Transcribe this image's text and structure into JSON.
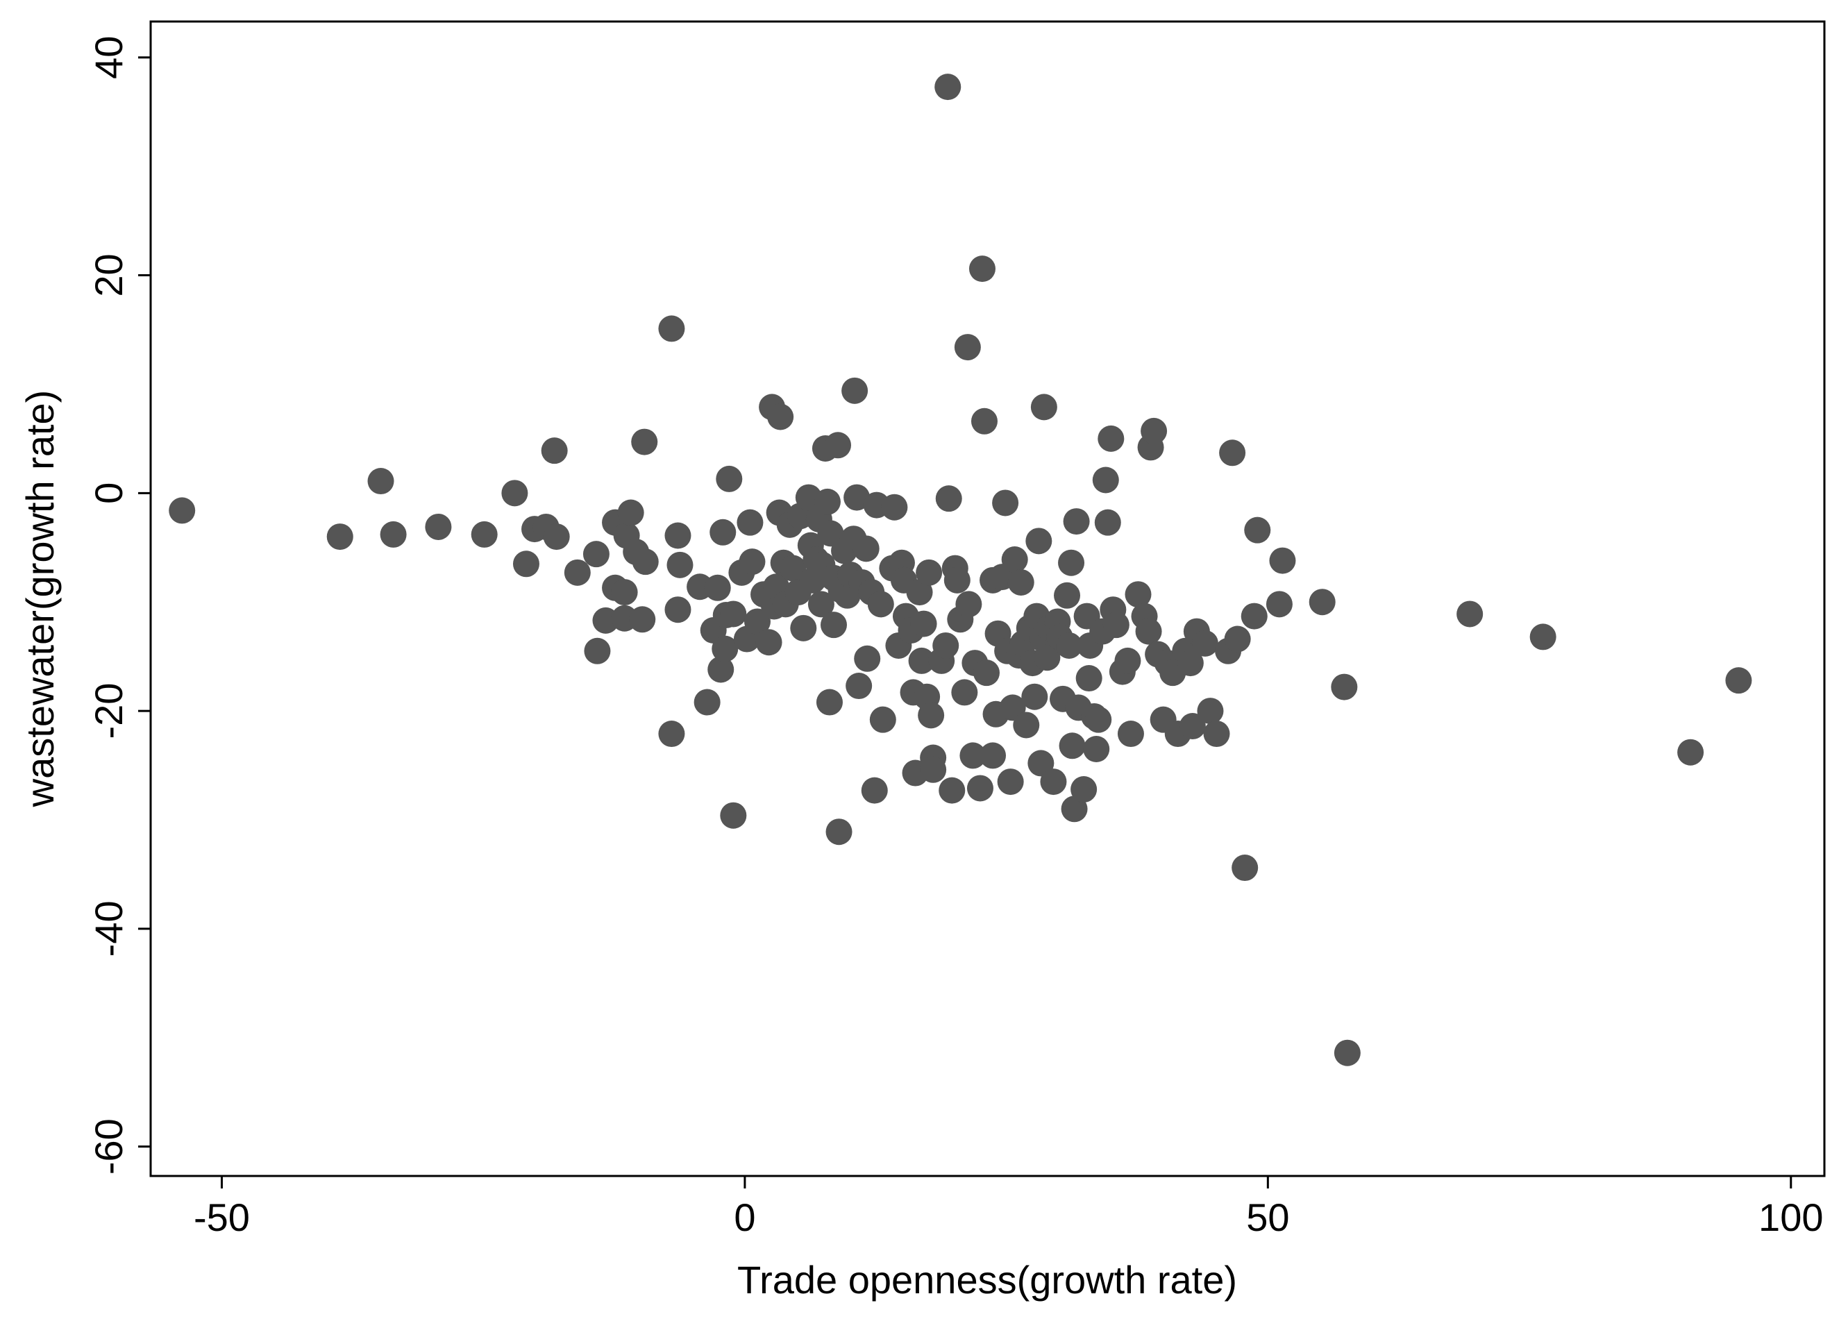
{
  "chart_data": {
    "type": "scatter",
    "x_label": "Trade openness(growth rate)",
    "y_label": "wastewater(growth rate)",
    "color": "#555555",
    "xlim": [
      -56.8,
      103.2
    ],
    "xticks": [
      -50,
      0,
      50,
      100
    ],
    "ylim": [
      -62.7,
      43.3
    ],
    "yticks": [
      -60,
      -40,
      -20,
      0,
      20,
      40
    ],
    "x": [
      -53.8,
      -38.7,
      -34.8,
      -33.6,
      -29.3,
      -24.9,
      -22.0,
      -20.9,
      -20.1,
      -19.0,
      -18.2,
      -18.0,
      -16.0,
      -14.2,
      -14.1,
      -13.3,
      -12.4,
      -12.4,
      -11.5,
      -11.5,
      -11.3,
      -10.9,
      -10.4,
      -9.8,
      -9.6,
      -9.5,
      -7.0,
      -7.0,
      -6.4,
      -6.4,
      -6.2,
      -4.3,
      -3.6,
      -3.0,
      -2.6,
      -2.3,
      -2.1,
      -1.9,
      -1.8,
      -1.5,
      -1.1,
      -1.1,
      -0.3,
      0.2,
      0.5,
      0.7,
      1.2,
      1.8,
      2.3,
      2.6,
      2.8,
      3.0,
      3.4,
      3.3,
      3.7,
      3.9,
      4.3,
      4.6,
      5.1,
      5.3,
      5.6,
      6.1,
      6.3,
      6.5,
      6.8,
      7.1,
      7.3,
      7.4,
      7.7,
      7.9,
      8.1,
      8.2,
      8.5,
      8.5,
      8.9,
      9.0,
      9.2,
      9.5,
      9.8,
      10.1,
      10.4,
      10.5,
      10.7,
      10.9,
      11.2,
      11.6,
      11.7,
      12.1,
      12.4,
      12.6,
      13.0,
      13.2,
      14.1,
      14.3,
      14.7,
      15.0,
      15.2,
      15.4,
      15.9,
      16.1,
      16.3,
      16.7,
      16.9,
      17.1,
      17.4,
      17.6,
      17.8,
      18.0,
      18.0,
      18.8,
      19.2,
      19.4,
      19.5,
      19.8,
      20.1,
      20.3,
      20.6,
      21.0,
      21.3,
      21.4,
      21.8,
      22.0,
      22.5,
      22.7,
      22.9,
      23.1,
      23.7,
      23.7,
      24.0,
      24.2,
      24.6,
      24.9,
      25.1,
      25.4,
      25.6,
      25.8,
      26.2,
      26.4,
      26.6,
      26.9,
      27.2,
      27.5,
      27.7,
      27.9,
      28.1,
      28.3,
      28.5,
      28.6,
      28.9,
      29.1,
      29.5,
      29.9,
      30.1,
      30.4,
      30.8,
      31.0,
      31.2,
      31.3,
      31.5,
      31.7,
      31.9,
      32.4,
      32.7,
      32.9,
      33.0,
      33.4,
      33.6,
      33.8,
      34.2,
      34.5,
      34.7,
      35.0,
      35.2,
      35.5,
      36.1,
      36.6,
      36.9,
      37.6,
      38.2,
      38.6,
      38.8,
      39.1,
      39.5,
      40.0,
      40.4,
      40.9,
      41.4,
      42.1,
      42.6,
      42.8,
      43.2,
      44.0,
      44.5,
      45.1,
      46.2,
      46.6,
      47.1,
      47.8,
      48.7,
      49.0,
      51.1,
      51.4,
      55.2,
      57.3,
      57.6,
      69.3,
      76.3,
      90.4,
      95.0
    ],
    "values": [
      -1.6,
      -4.0,
      1.1,
      -3.8,
      -3.1,
      -3.8,
      0,
      -6.5,
      -3.3,
      -3.1,
      3.9,
      -4.0,
      -7.3,
      -5.6,
      -14.5,
      -11.7,
      -2.7,
      -8.7,
      -9.1,
      -11.5,
      -3.9,
      -1.8,
      -5.4,
      -11.6,
      4.7,
      -6.3,
      15.1,
      -22.1,
      -3.9,
      -10.7,
      -6.6,
      -8.6,
      -19.2,
      -12.6,
      -8.7,
      -16.2,
      -3.6,
      -14.3,
      -11.2,
      1.3,
      -29.6,
      -11.1,
      -7.3,
      -13.4,
      -2.7,
      -6.3,
      -11.8,
      -9.3,
      -13.7,
      7.9,
      -10.4,
      -8.6,
      7.0,
      -1.8,
      -6.4,
      -10.2,
      -2.9,
      -6.9,
      -9.1,
      -2.1,
      -12.4,
      -0.4,
      -4.8,
      -8.0,
      -6.1,
      -2.4,
      -10.2,
      -6.6,
      4.1,
      -0.8,
      -19.2,
      -3.7,
      -7.8,
      -12.1,
      4.4,
      -31.1,
      -8.9,
      -5.3,
      -9.4,
      -7.5,
      -4.2,
      9.4,
      -0.4,
      -17.7,
      -8.2,
      -5.1,
      -15.2,
      -9.1,
      -27.3,
      -1.1,
      -10.2,
      -20.8,
      -6.9,
      -1.3,
      -14.0,
      -6.4,
      -8.0,
      -11.3,
      -12.6,
      -18.3,
      -25.7,
      -9.1,
      -15.4,
      -12.0,
      -18.7,
      -7.3,
      -20.4,
      -24.3,
      -25.4,
      -15.4,
      -14.0,
      37.3,
      -0.5,
      -27.3,
      -6.9,
      -8.0,
      -11.6,
      -18.3,
      13.4,
      -10.2,
      -24.1,
      -15.6,
      -27.1,
      20.6,
      6.6,
      -16.5,
      -8.0,
      -24.1,
      -20.3,
      -12.9,
      -7.7,
      -0.9,
      -14.5,
      -26.5,
      -19.7,
      -6.1,
      -14.9,
      -8.2,
      -13.8,
      -21.3,
      -12.4,
      -15.6,
      -18.7,
      -11.3,
      -4.4,
      -24.8,
      -13.4,
      7.9,
      -15.1,
      -12.4,
      -26.5,
      -11.8,
      -13.2,
      -18.9,
      -9.4,
      -14.0,
      -6.4,
      -23.2,
      -29.0,
      -2.6,
      -19.7,
      -27.2,
      -11.3,
      -17.0,
      -14.0,
      -20.5,
      -23.5,
      -20.8,
      -12.7,
      1.2,
      -2.7,
      5.0,
      -10.7,
      -12.1,
      -16.4,
      -15.4,
      -22.1,
      -9.3,
      -11.3,
      -12.7,
      4.2,
      5.7,
      -14.8,
      -20.8,
      -15.6,
      -16.5,
      -22.1,
      -14.5,
      -15.6,
      -21.4,
      -12.7,
      -13.8,
      -20.0,
      -22.1,
      -14.5,
      3.7,
      -13.4,
      -34.4,
      -11.3,
      -3.4,
      -10.2,
      -6.2,
      -10.0,
      -17.8,
      -51.4,
      -11.1,
      -13.2,
      -23.8,
      -17.2
    ]
  }
}
